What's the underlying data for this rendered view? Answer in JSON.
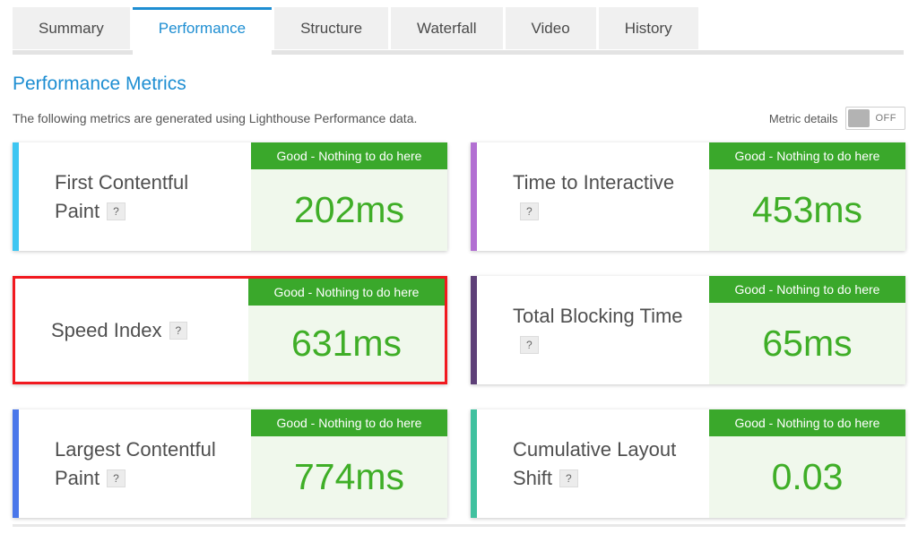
{
  "tabs": [
    {
      "label": "Summary",
      "active": false
    },
    {
      "label": "Performance",
      "active": true
    },
    {
      "label": "Structure",
      "active": false
    },
    {
      "label": "Waterfall",
      "active": false
    },
    {
      "label": "Video",
      "active": false
    },
    {
      "label": "History",
      "active": false
    }
  ],
  "header": {
    "title": "Performance Metrics",
    "subtitle": "The following metrics are generated using Lighthouse Performance data.",
    "toggle": {
      "label": "Metric details",
      "state": "OFF"
    }
  },
  "colors": {
    "accent_blue": "#1e8ed2",
    "badge_green": "#3aa82b",
    "value_green": "#3fae27",
    "value_bg": "#f0f8ec",
    "highlight_red": "#f1191f"
  },
  "metrics": [
    {
      "name": "First Contentful Paint",
      "help": "?",
      "status": "Good - Nothing to do here",
      "value": "202ms",
      "bar_color": "#3ec6f2",
      "highlighted": false
    },
    {
      "name": "Time to Interactive",
      "help": "?",
      "status": "Good - Nothing to do here",
      "value": "453ms",
      "bar_color": "#b26fd2",
      "highlighted": false
    },
    {
      "name": "Speed Index",
      "help": "?",
      "status": "Good - Nothing to do here",
      "value": "631ms",
      "bar_color": "#e83e8c",
      "highlighted": true
    },
    {
      "name": "Total Blocking Time",
      "help": "?",
      "status": "Good - Nothing to do here",
      "value": "65ms",
      "bar_color": "#5e4078",
      "highlighted": false
    },
    {
      "name": "Largest Contentful Paint",
      "help": "?",
      "status": "Good - Nothing to do here",
      "value": "774ms",
      "bar_color": "#4a77ea",
      "highlighted": false
    },
    {
      "name": "Cumulative Layout Shift",
      "help": "?",
      "status": "Good - Nothing to do here",
      "value": "0.03",
      "bar_color": "#40c19f",
      "highlighted": false
    }
  ]
}
